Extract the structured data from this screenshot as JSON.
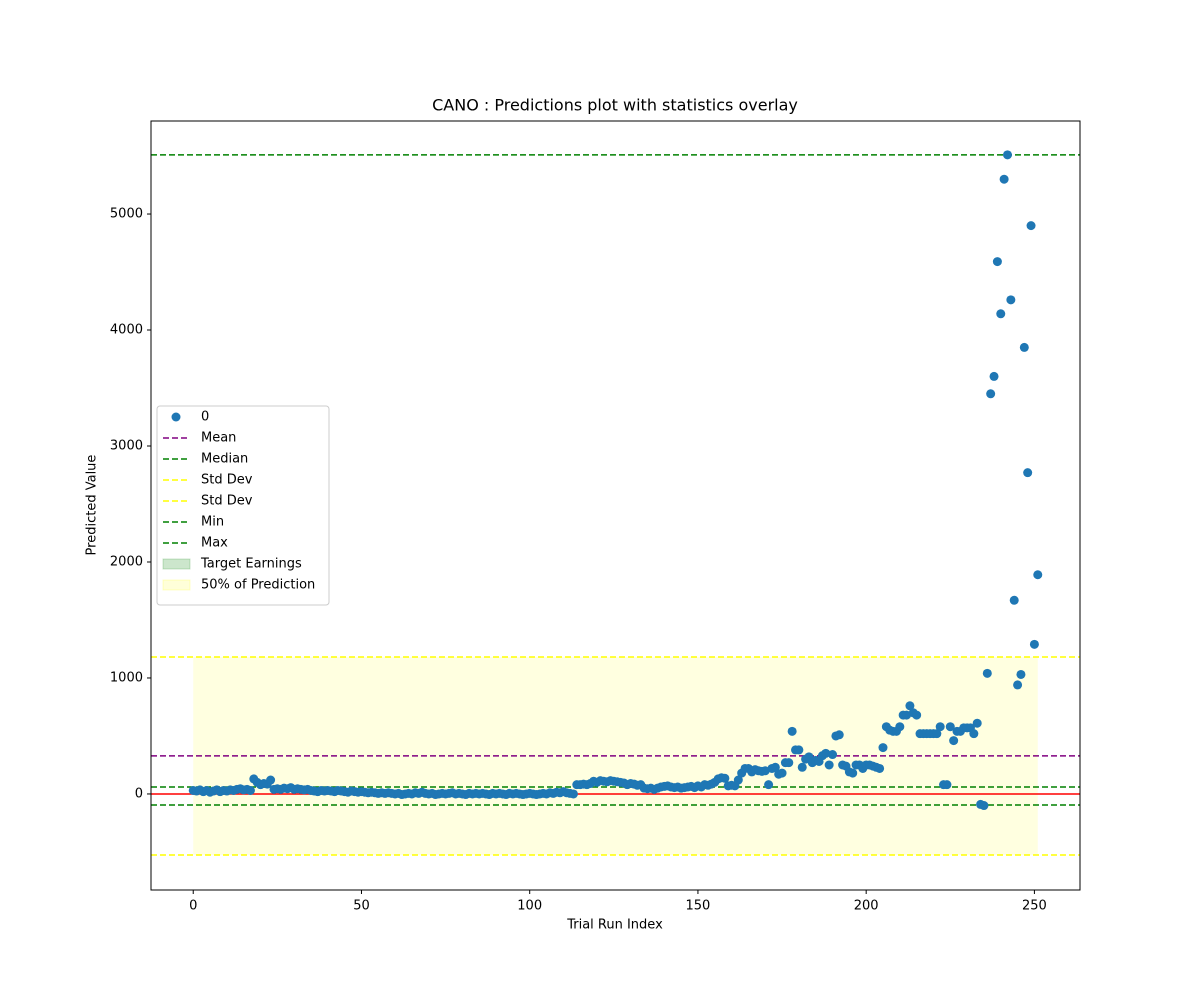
{
  "chart_data": {
    "type": "scatter",
    "title": "CANO : Predictions plot with statistics overlay",
    "x_label": "Trial Run Index",
    "y_label": "Predicted Value",
    "xlim": [
      -12.55,
      263.55
    ],
    "ylim": [
      -828,
      5802
    ],
    "xticks": [
      0,
      50,
      100,
      150,
      200,
      250
    ],
    "yticks": [
      0,
      1000,
      2000,
      3000,
      4000,
      5000
    ],
    "x": [
      0,
      1,
      2,
      3,
      4,
      5,
      6,
      7,
      8,
      9,
      10,
      11,
      12,
      13,
      14,
      15,
      16,
      17,
      18,
      19,
      20,
      21,
      22,
      23,
      24,
      25,
      26,
      27,
      28,
      29,
      30,
      31,
      32,
      33,
      34,
      35,
      36,
      37,
      38,
      39,
      40,
      41,
      42,
      43,
      44,
      45,
      46,
      47,
      48,
      49,
      50,
      51,
      52,
      53,
      54,
      55,
      56,
      57,
      58,
      59,
      60,
      61,
      62,
      63,
      64,
      65,
      66,
      67,
      68,
      69,
      70,
      71,
      72,
      73,
      74,
      75,
      76,
      77,
      78,
      79,
      80,
      81,
      82,
      83,
      84,
      85,
      86,
      87,
      88,
      89,
      90,
      91,
      92,
      93,
      94,
      95,
      96,
      97,
      98,
      99,
      100,
      101,
      102,
      103,
      104,
      105,
      106,
      107,
      108,
      109,
      110,
      111,
      112,
      113,
      114,
      115,
      116,
      117,
      118,
      119,
      120,
      121,
      122,
      123,
      124,
      125,
      126,
      127,
      128,
      129,
      130,
      131,
      132,
      133,
      134,
      135,
      136,
      137,
      138,
      139,
      140,
      141,
      142,
      143,
      144,
      145,
      146,
      147,
      148,
      149,
      150,
      151,
      152,
      153,
      154,
      155,
      156,
      157,
      158,
      159,
      160,
      161,
      162,
      163,
      164,
      165,
      166,
      167,
      168,
      169,
      170,
      171,
      172,
      173,
      174,
      175,
      176,
      177,
      178,
      179,
      180,
      181,
      182,
      183,
      184,
      185,
      186,
      187,
      188,
      189,
      190,
      191,
      192,
      193,
      194,
      195,
      196,
      197,
      198,
      199,
      200,
      201,
      202,
      203,
      204,
      205,
      206,
      207,
      208,
      209,
      210,
      211,
      212,
      213,
      214,
      215,
      216,
      217,
      218,
      219,
      220,
      221,
      222,
      223,
      224,
      225,
      226,
      227,
      228,
      229,
      230,
      231,
      232,
      233,
      234,
      235,
      236,
      237,
      238,
      239,
      240,
      241,
      242,
      243,
      244,
      245,
      246,
      247,
      248,
      249,
      250,
      251
    ],
    "series": [
      {
        "name": "0",
        "color": "#1f77b4",
        "values": [
          30,
          25,
          35,
          20,
          30,
          15,
          25,
          35,
          20,
          30,
          25,
          35,
          30,
          40,
          45,
          35,
          40,
          30,
          130,
          100,
          80,
          90,
          85,
          120,
          40,
          45,
          40,
          50,
          45,
          55,
          40,
          45,
          40,
          35,
          40,
          30,
          25,
          20,
          30,
          25,
          30,
          25,
          20,
          30,
          25,
          20,
          15,
          25,
          20,
          15,
          20,
          15,
          10,
          15,
          10,
          5,
          10,
          5,
          10,
          5,
          0,
          5,
          -5,
          0,
          5,
          0,
          10,
          5,
          15,
          5,
          0,
          5,
          -5,
          0,
          5,
          0,
          5,
          10,
          0,
          5,
          0,
          -5,
          5,
          0,
          5,
          0,
          5,
          0,
          -5,
          5,
          0,
          5,
          0,
          -5,
          5,
          0,
          5,
          0,
          -5,
          0,
          5,
          0,
          -5,
          0,
          5,
          0,
          10,
          5,
          15,
          10,
          20,
          10,
          5,
          0,
          80,
          80,
          85,
          80,
          90,
          110,
          100,
          115,
          110,
          105,
          115,
          110,
          105,
          100,
          95,
          80,
          90,
          85,
          75,
          80,
          50,
          45,
          50,
          40,
          50,
          60,
          65,
          70,
          60,
          55,
          60,
          50,
          55,
          60,
          65,
          55,
          70,
          60,
          80,
          75,
          85,
          100,
          130,
          140,
          135,
          70,
          75,
          70,
          120,
          180,
          220,
          220,
          190,
          210,
          200,
          195,
          200,
          80,
          220,
          230,
          170,
          180,
          270,
          270,
          540,
          380,
          380,
          230,
          300,
          320,
          270,
          290,
          280,
          330,
          350,
          250,
          340,
          500,
          510,
          250,
          240,
          190,
          180,
          250,
          250,
          220,
          250,
          250,
          240,
          230,
          220,
          400,
          580,
          550,
          540,
          540,
          580,
          680,
          680,
          760,
          700,
          680,
          520,
          520,
          520,
          520,
          520,
          520,
          580,
          80,
          80,
          580,
          460,
          540,
          540,
          570,
          570,
          570,
          520,
          610,
          -90,
          -100,
          1040,
          3450,
          3600,
          4590,
          4140,
          5300,
          5510,
          4260,
          1670,
          940,
          1030,
          3850,
          2770,
          4900,
          1290,
          1890
        ]
      }
    ],
    "hlines": [
      {
        "name": "Mean",
        "value": 328,
        "color": "purple"
      },
      {
        "name": "Median",
        "value": 60,
        "color": "green"
      },
      {
        "name": "Std Dev",
        "value": 1181,
        "color": "yellow"
      },
      {
        "name": "Std Dev",
        "value": -526,
        "color": "yellow"
      },
      {
        "name": "Min",
        "value": -95,
        "color": "green"
      },
      {
        "name": "Max",
        "value": 5510,
        "color": "green"
      }
    ],
    "baseline": {
      "value": 0,
      "color": "red"
    },
    "fills": [
      {
        "name": "Target Earnings",
        "color": "green",
        "alpha": 0.2
      },
      {
        "name": "50% of Prediction",
        "color": "yellow",
        "alpha": 0.12,
        "x": [
          0,
          251
        ],
        "y": [
          -526,
          1181
        ]
      }
    ],
    "legend": "center left"
  }
}
